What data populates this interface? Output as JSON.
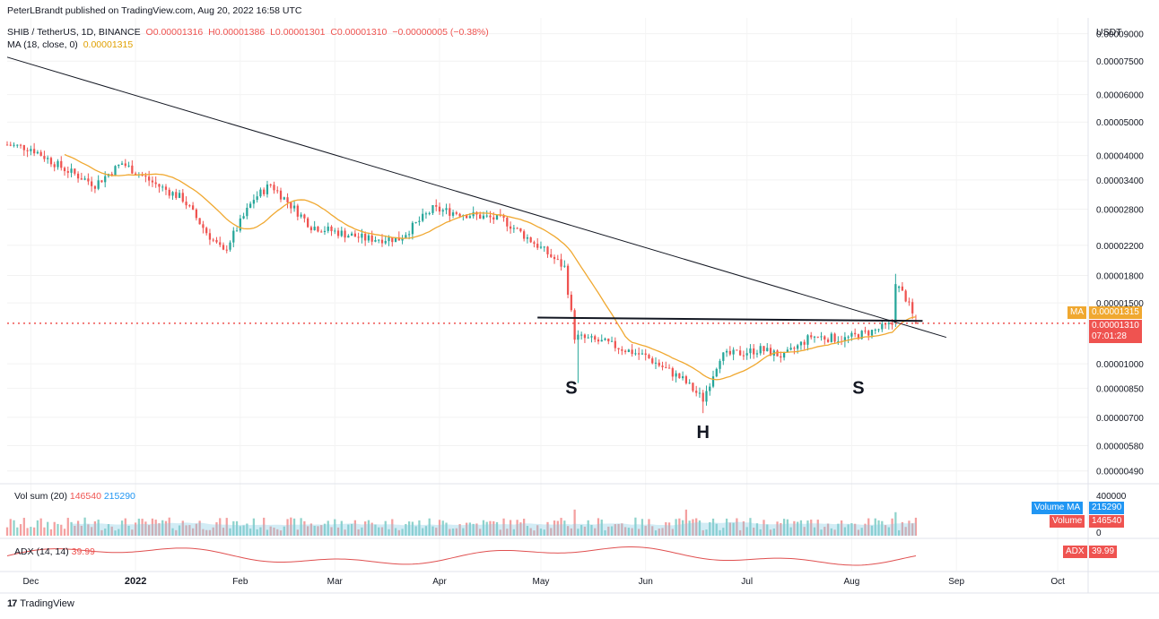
{
  "header": {
    "publisher": "PeterLBrandt published on TradingView.com, Aug 20, 2022 16:58 UTC",
    "symbol": "SHIB / TetherUS, 1D, BINANCE",
    "open": "O0.00001316",
    "high": "H0.00001386",
    "low": "L0.00001301",
    "close": "C0.00001310",
    "change": "−0.00000005 (−0.38%)",
    "ma_label": "MA (18, close, 0)",
    "ma_value": "0.00001315"
  },
  "price_axis": {
    "currency": "USDT",
    "ticks": [
      "0.00009000",
      "0.00007500",
      "0.00006000",
      "0.00005000",
      "0.00004000",
      "0.00003400",
      "0.00002800",
      "0.00002200",
      "0.00001800",
      "0.00001500",
      "0.00001000",
      "0.00000850",
      "0.00000700",
      "0.00000580",
      "0.00000490"
    ],
    "ma_tag_label": "MA",
    "ma_tag_value": "0.00001315",
    "last_price": "0.00001310",
    "countdown": "07:01:28"
  },
  "volume_panel": {
    "label": "Vol sum (20)",
    "volume_value": "146540",
    "ma_value": "215290",
    "axis_top": "400000",
    "axis_zero": "0",
    "tag_ma_label": "Volume MA",
    "tag_ma_value": "215290",
    "tag_vol_label": "Volume",
    "tag_vol_value": "146540"
  },
  "adx_panel": {
    "label": "ADX (14, 14)",
    "value": "39.99",
    "tag_label": "ADX",
    "tag_value": "39.99"
  },
  "time_axis": [
    "Dec",
    "2022",
    "Feb",
    "Mar",
    "Apr",
    "May",
    "Jun",
    "Jul",
    "Aug",
    "Sep",
    "Oct"
  ],
  "annotations": [
    "S",
    "H",
    "S"
  ],
  "footer": {
    "logo": "17",
    "brand": "TradingView"
  },
  "colors": {
    "up": "#26a69a",
    "down": "#ef5350",
    "ma": "#f0a830",
    "volume_ma": "#7ec8e3",
    "adx": "#e05050",
    "blue_tag": "#2196f3"
  },
  "chart_data": {
    "type": "candlestick",
    "title": "SHIB / TetherUS, 1D, BINANCE",
    "ylabel": "USDT",
    "y_scale": "log",
    "ylim": [
      4.5e-06,
      0.0001
    ],
    "x_range": [
      "2021-11-24",
      "2022-10-10"
    ],
    "x_ticks": [
      "Dec",
      "2022",
      "Feb",
      "Mar",
      "Apr",
      "May",
      "Jun",
      "Jul",
      "Aug",
      "Sep",
      "Oct"
    ],
    "last_close": 1.31e-05,
    "ma18_last": 1.315e-05,
    "close_path": [
      {
        "date": "2021-11-24",
        "close": 4.3e-05
      },
      {
        "date": "2021-12-01",
        "close": 4.2e-05
      },
      {
        "date": "2021-12-10",
        "close": 3.7e-05
      },
      {
        "date": "2021-12-20",
        "close": 3.3e-05
      },
      {
        "date": "2021-12-28",
        "close": 3.8e-05
      },
      {
        "date": "2022-01-07",
        "close": 3.3e-05
      },
      {
        "date": "2022-01-15",
        "close": 3e-05
      },
      {
        "date": "2022-01-22",
        "close": 2.4e-05
      },
      {
        "date": "2022-01-27",
        "close": 2.1e-05
      },
      {
        "date": "2022-02-05",
        "close": 3e-05
      },
      {
        "date": "2022-02-10",
        "close": 3.3e-05
      },
      {
        "date": "2022-02-22",
        "close": 2.5e-05
      },
      {
        "date": "2022-03-10",
        "close": 2.3e-05
      },
      {
        "date": "2022-03-20",
        "close": 2.3e-05
      },
      {
        "date": "2022-03-30",
        "close": 2.8e-05
      },
      {
        "date": "2022-04-10",
        "close": 2.7e-05
      },
      {
        "date": "2022-04-20",
        "close": 2.6e-05
      },
      {
        "date": "2022-04-30",
        "close": 2.2e-05
      },
      {
        "date": "2022-05-08",
        "close": 1.9e-05
      },
      {
        "date": "2022-05-11",
        "close": 1.2e-05
      },
      {
        "date": "2022-05-20",
        "close": 1.15e-05
      },
      {
        "date": "2022-06-01",
        "close": 1.05e-05
      },
      {
        "date": "2022-06-12",
        "close": 9e-06
      },
      {
        "date": "2022-06-18",
        "close": 7.9e-06
      },
      {
        "date": "2022-06-23",
        "close": 1.05e-05
      },
      {
        "date": "2022-07-05",
        "close": 1.1e-05
      },
      {
        "date": "2022-07-12",
        "close": 1.05e-05
      },
      {
        "date": "2022-07-20",
        "close": 1.2e-05
      },
      {
        "date": "2022-07-30",
        "close": 1.18e-05
      },
      {
        "date": "2022-08-08",
        "close": 1.25e-05
      },
      {
        "date": "2022-08-13",
        "close": 1.3e-05
      },
      {
        "date": "2022-08-14",
        "close": 1.7e-05
      },
      {
        "date": "2022-08-17",
        "close": 1.55e-05
      },
      {
        "date": "2022-08-20",
        "close": 1.31e-05
      }
    ],
    "trendline": [
      {
        "date": "2021-11-24",
        "price": 7.7e-05
      },
      {
        "date": "2022-08-22",
        "price": 1.25e-05
      }
    ],
    "neckline": [
      {
        "date": "2022-04-30",
        "price": 1.36e-05
      },
      {
        "date": "2022-08-22",
        "price": 1.33e-05
      }
    ],
    "annotations": [
      {
        "text": "S",
        "date": "2022-05-10"
      },
      {
        "text": "H",
        "date": "2022-06-18"
      },
      {
        "text": "S",
        "date": "2022-08-03"
      }
    ],
    "volume": {
      "last": 146540,
      "ma": 215290,
      "axis_max": 400000
    },
    "adx": {
      "last": 39.99
    }
  }
}
